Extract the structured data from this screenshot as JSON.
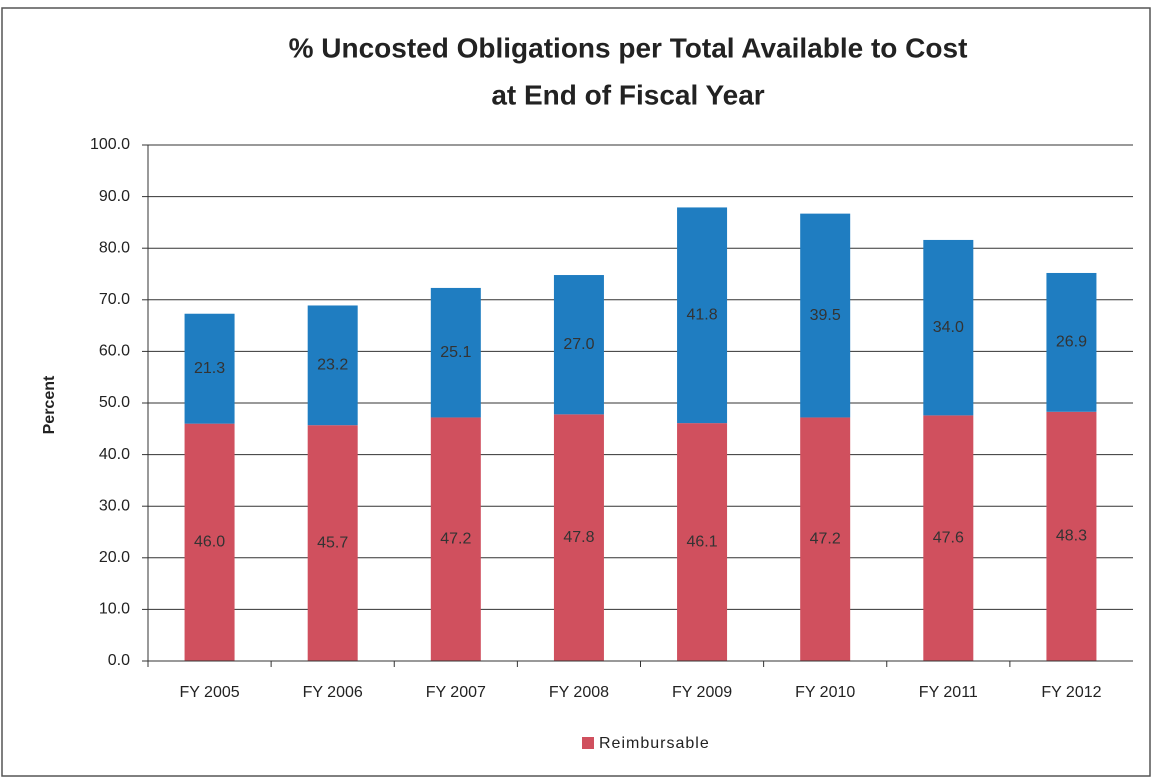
{
  "chart_data": {
    "type": "stacked_bar",
    "title": [
      "% Uncosted Obligations per Total Available to Cost",
      "at End of Fiscal Year"
    ],
    "y_label": "Percent",
    "categories": [
      "FY 2005",
      "FY 2006",
      "FY 2007",
      "FY 2008",
      "FY 2009",
      "FY 2010",
      "FY 2011",
      "FY 2012"
    ],
    "series": [
      {
        "name": "Reimbursable",
        "color": "#d0505e",
        "values": [
          46.0,
          45.7,
          47.2,
          47.8,
          46.1,
          47.2,
          47.6,
          48.3
        ],
        "value_labels": [
          "46.0",
          "45.7",
          "47.2",
          "47.8",
          "46.1",
          "47.2",
          "47.6",
          "48.3"
        ]
      },
      {
        "color": "#1f7dc1",
        "values": [
          21.3,
          23.2,
          25.1,
          27.0,
          41.8,
          39.5,
          34.0,
          26.9
        ],
        "value_labels": [
          "21.3",
          "23.2",
          "25.1",
          "27.0",
          "41.8",
          "39.5",
          "34.0",
          "26.9"
        ]
      }
    ],
    "ylim": [
      0,
      100
    ],
    "yticks": [
      {
        "value": 0,
        "label": "0.0"
      },
      {
        "value": 10,
        "label": "10.0"
      },
      {
        "value": 20,
        "label": "20.0"
      },
      {
        "value": 30,
        "label": "30.0"
      },
      {
        "value": 40,
        "label": "40.0"
      },
      {
        "value": 50,
        "label": "50.0"
      },
      {
        "value": 60,
        "label": "60.0"
      },
      {
        "value": 70,
        "label": "70.0"
      },
      {
        "value": 80,
        "label": "80.0"
      },
      {
        "value": 90,
        "label": "90.0"
      },
      {
        "value": 100,
        "label": "100.0"
      }
    ],
    "grid": true,
    "legend": "bottom"
  }
}
